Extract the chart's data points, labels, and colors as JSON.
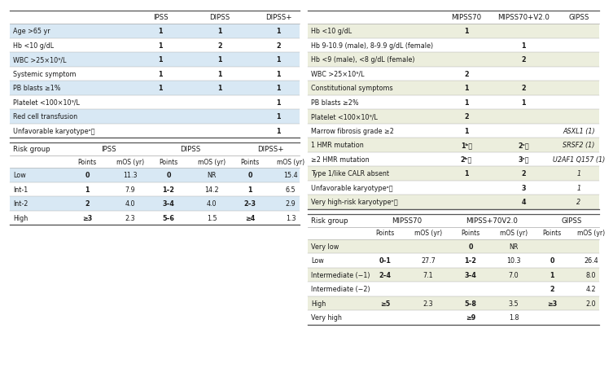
{
  "left_table1_header": [
    "",
    "IPSS",
    "DIPSS",
    "DIPSS+"
  ],
  "left_table1_rows": [
    [
      "Age >65 yr",
      "1",
      "1",
      "1"
    ],
    [
      "Hb <10 g/dL",
      "1",
      "2",
      "2"
    ],
    [
      "WBC >25×10⁹/L",
      "1",
      "1",
      "1"
    ],
    [
      "Systemic symptom",
      "1",
      "1",
      "1"
    ],
    [
      "PB blasts ≥1%",
      "1",
      "1",
      "1"
    ],
    [
      "Platelet <100×10⁹/L",
      "",
      "",
      "1"
    ],
    [
      "Red cell transfusion",
      "",
      "",
      "1"
    ],
    [
      "Unfavorable karyotypeᵃ⧉",
      "",
      "",
      "1"
    ]
  ],
  "left_table2_rows": [
    [
      "Low",
      "0",
      "11.3",
      "0",
      "NR",
      "0",
      "15.4"
    ],
    [
      "Int-1",
      "1",
      "7.9",
      "1–2",
      "14.2",
      "1",
      "6.5"
    ],
    [
      "Int-2",
      "2",
      "4.0",
      "3–4",
      "4.0",
      "2–3",
      "2.9"
    ],
    [
      "High",
      "≥3",
      "2.3",
      "5–6",
      "1.5",
      "≥4",
      "1.3"
    ]
  ],
  "right_table1_header": [
    "",
    "MIPSS70",
    "MIPSS70+V2.0",
    "GIPSS"
  ],
  "right_table1_rows": [
    [
      "Hb <10 g/dL",
      "1",
      "",
      ""
    ],
    [
      "Hb 9-10.9 (male), 8-9.9 g/dL (female)",
      "",
      "1",
      ""
    ],
    [
      "Hb <9 (male), <8 g/dL (female)",
      "",
      "2",
      ""
    ],
    [
      "WBC >25×10⁹/L",
      "2",
      "",
      ""
    ],
    [
      "Constitutional symptoms",
      "1",
      "2",
      ""
    ],
    [
      "PB blasts ≥2%",
      "1",
      "1",
      ""
    ],
    [
      "Platelet <100×10⁹/L",
      "2",
      "",
      ""
    ],
    [
      "Marrow fibrosis grade ≥2",
      "1",
      "",
      "ASXL1 (1)"
    ],
    [
      "1 HMR mutation",
      "1ᵇ⧉",
      "2ᶜ⧉",
      "SRSF2 (1)"
    ],
    [
      "≥2 HMR mutation",
      "2ᵇ⧉",
      "3ᶜ⧉",
      "U2AF1 Q157 (1)"
    ],
    [
      "Type 1/like CALR absent",
      "1",
      "2",
      "1"
    ],
    [
      "Unfavorable karyotypeᵃ⧉",
      "",
      "3",
      "1"
    ],
    [
      "Very high-risk karyotypeᵉ⧉",
      "",
      "4",
      "2"
    ]
  ],
  "right_table2_rows": [
    [
      "Very low",
      "",
      "",
      "0",
      "NR",
      "",
      ""
    ],
    [
      "Low",
      "0–1",
      "27.7",
      "1–2",
      "10.3",
      "0",
      "26.4"
    ],
    [
      "Intermediate (−1)",
      "2–4",
      "7.1",
      "3–4",
      "7.0",
      "1",
      "8.0"
    ],
    [
      "Intermediate (−2)",
      "",
      "",
      "",
      "",
      "2",
      "4.2"
    ],
    [
      "High",
      "≥5",
      "2.3",
      "5–8",
      "3.5",
      "≥3",
      "2.0"
    ],
    [
      "Very high",
      "",
      "",
      "≥9",
      "1.8",
      "",
      ""
    ]
  ],
  "row_alt_left": "#d8e8f4",
  "row_plain_left": "#ffffff",
  "row_alt_right": "#eceedd",
  "row_plain_right": "#ffffff",
  "text_color": "#1a1a1a",
  "line_color": "#aaaaaa",
  "border_color": "#555555"
}
